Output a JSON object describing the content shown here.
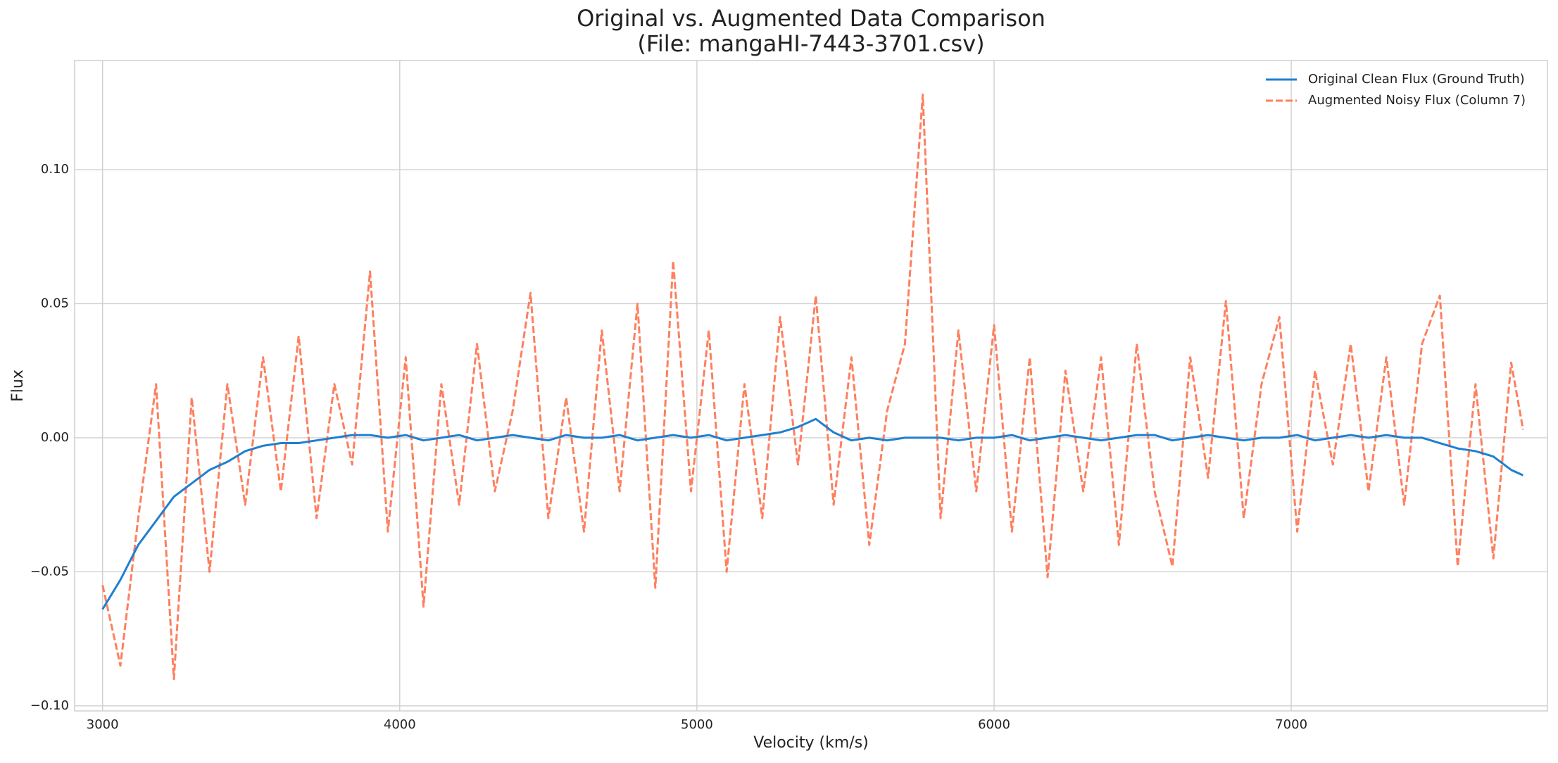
{
  "chart_data": {
    "type": "line",
    "title": [
      "Original vs. Augmented Data Comparison",
      "(File: mangaHI-7443-3701.csv)"
    ],
    "x_label": "Velocity (km/s)",
    "y_label": "Flux",
    "x": [
      3000,
      3060,
      3120,
      3180,
      3240,
      3300,
      3360,
      3420,
      3480,
      3540,
      3600,
      3660,
      3720,
      3780,
      3840,
      3900,
      3960,
      4020,
      4080,
      4140,
      4200,
      4260,
      4320,
      4380,
      4440,
      4500,
      4560,
      4620,
      4680,
      4740,
      4800,
      4860,
      4920,
      4980,
      5040,
      5100,
      5160,
      5220,
      5280,
      5340,
      5400,
      5460,
      5520,
      5580,
      5640,
      5700,
      5760,
      5820,
      5880,
      5940,
      6000,
      6060,
      6120,
      6180,
      6240,
      6300,
      6360,
      6420,
      6480,
      6540,
      6600,
      6660,
      6720,
      6780,
      6840,
      6900,
      6960,
      7020,
      7080,
      7140,
      7200,
      7260,
      7320,
      7380,
      7440,
      7500,
      7560,
      7620,
      7680,
      7740,
      7780
    ],
    "series": [
      {
        "name": "Original Clean Flux (Ground Truth)",
        "color": "#1f7fd0",
        "linestyle": "solid",
        "values": [
          -0.064,
          -0.053,
          -0.04,
          -0.031,
          -0.022,
          -0.017,
          -0.012,
          -0.009,
          -0.005,
          -0.003,
          -0.002,
          -0.002,
          -0.001,
          0.0,
          0.001,
          0.001,
          0.0,
          0.001,
          -0.001,
          0.0,
          0.001,
          -0.001,
          0.0,
          0.001,
          0.0,
          -0.001,
          0.001,
          0.0,
          0.0,
          0.001,
          -0.001,
          0.0,
          0.001,
          0.0,
          0.001,
          -0.001,
          0.0,
          0.001,
          0.002,
          0.004,
          0.007,
          0.002,
          -0.001,
          0.0,
          -0.001,
          0.0,
          0.0,
          0.0,
          -0.001,
          0.0,
          0.0,
          0.001,
          -0.001,
          0.0,
          0.001,
          0.0,
          -0.001,
          0.0,
          0.001,
          0.001,
          -0.001,
          0.0,
          0.001,
          0.0,
          -0.001,
          0.0,
          0.0,
          0.001,
          -0.001,
          0.0,
          0.001,
          0.0,
          0.001,
          0.0,
          0.0,
          -0.002,
          -0.004,
          -0.005,
          -0.007,
          -0.012,
          -0.014
        ]
      },
      {
        "name": "Augmented Noisy Flux (Column 7)",
        "color": "#ff7f5e",
        "linestyle": "dashed",
        "values": [
          -0.055,
          -0.085,
          -0.03,
          0.02,
          -0.09,
          0.015,
          -0.05,
          0.02,
          -0.025,
          0.03,
          -0.02,
          0.038,
          -0.03,
          0.02,
          -0.01,
          0.062,
          -0.035,
          0.03,
          -0.063,
          0.02,
          -0.025,
          0.035,
          -0.02,
          0.01,
          0.054,
          -0.03,
          0.015,
          -0.035,
          0.04,
          -0.02,
          0.05,
          -0.056,
          0.066,
          -0.02,
          0.04,
          -0.05,
          0.02,
          -0.03,
          0.045,
          -0.01,
          0.053,
          -0.025,
          0.03,
          -0.04,
          0.01,
          0.035,
          0.128,
          -0.03,
          0.04,
          -0.02,
          0.042,
          -0.035,
          0.03,
          -0.052,
          0.025,
          -0.02,
          0.03,
          -0.04,
          0.035,
          -0.02,
          -0.048,
          0.03,
          -0.015,
          0.051,
          -0.03,
          0.02,
          0.045,
          -0.035,
          0.025,
          -0.01,
          0.035,
          -0.02,
          0.03,
          -0.025,
          0.035,
          0.053,
          -0.048,
          0.02,
          -0.045,
          0.028,
          0.003
        ]
      }
    ],
    "xlim": [
      2906,
      7862
    ],
    "ylim": [
      -0.1019,
      0.1407
    ],
    "xticks": [
      3000,
      4000,
      5000,
      6000,
      7000
    ],
    "yticks": [
      {
        "value": -0.1,
        "label": "−0.10"
      },
      {
        "value": -0.05,
        "label": "−0.05"
      },
      {
        "value": 0,
        "label": "0.00"
      },
      0.05,
      {
        "value": 0.1,
        "label": "0.10"
      }
    ],
    "grid": true,
    "legend": "upper right"
  }
}
